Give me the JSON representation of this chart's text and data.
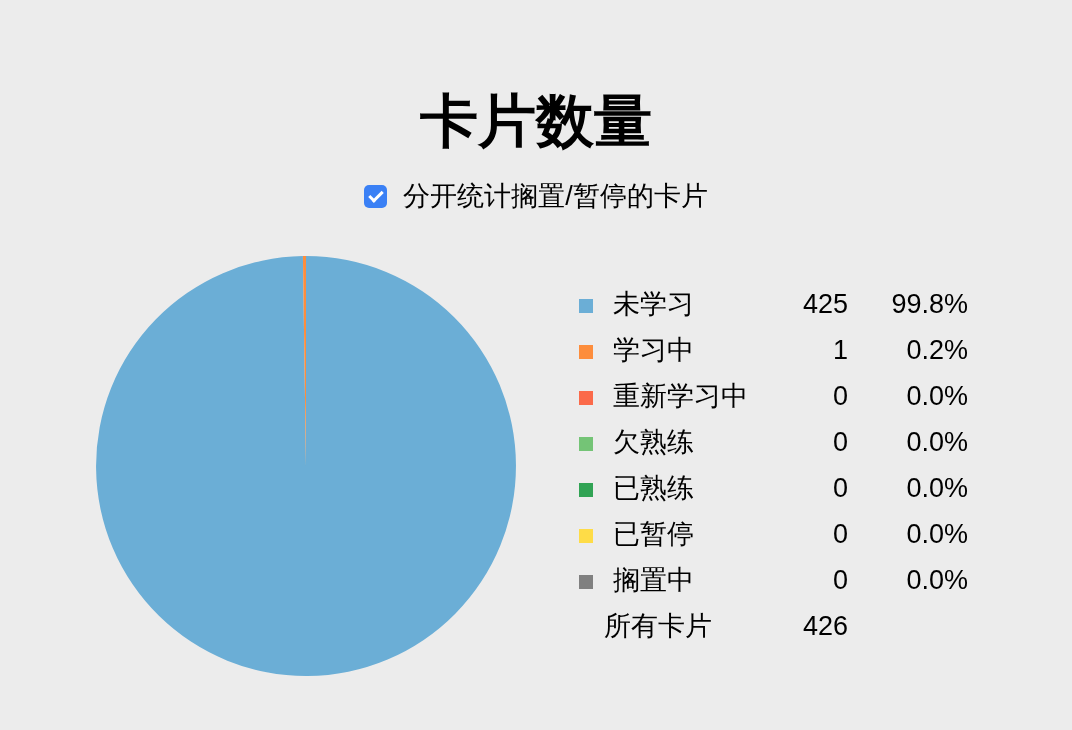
{
  "chart_data": {
    "type": "pie",
    "title": "卡片数量",
    "subtitle": "分开统计搁置/暂停的卡片",
    "categories": [
      "未学习",
      "学习中",
      "重新学习中",
      "欠熟练",
      "已熟练",
      "已暂停",
      "搁置中"
    ],
    "values": [
      425,
      1,
      0,
      0,
      0,
      0,
      0
    ],
    "value_labels": [
      "425",
      "1",
      "0",
      "0",
      "0",
      "0",
      "0"
    ],
    "colors": [
      "#6baed6",
      "#fd8d3c",
      "#fb6a4a",
      "#74c476",
      "#31a354",
      "#fedc47",
      "#808080"
    ],
    "totals": [
      "426"
    ],
    "annotations": [
      {
        "text": "99.8%",
        "x": "未学习"
      },
      {
        "text": "0.2%",
        "x": "学习中"
      },
      {
        "text": "0.0%",
        "x": "重新学习中"
      },
      {
        "text": "0.0%",
        "x": "欠熟练"
      },
      {
        "text": "0.0%",
        "x": "已熟练"
      },
      {
        "text": "0.0%",
        "x": "已暂停"
      },
      {
        "text": "0.0%",
        "x": "搁置中"
      },
      "所有卡片"
    ],
    "legend": "right"
  }
}
